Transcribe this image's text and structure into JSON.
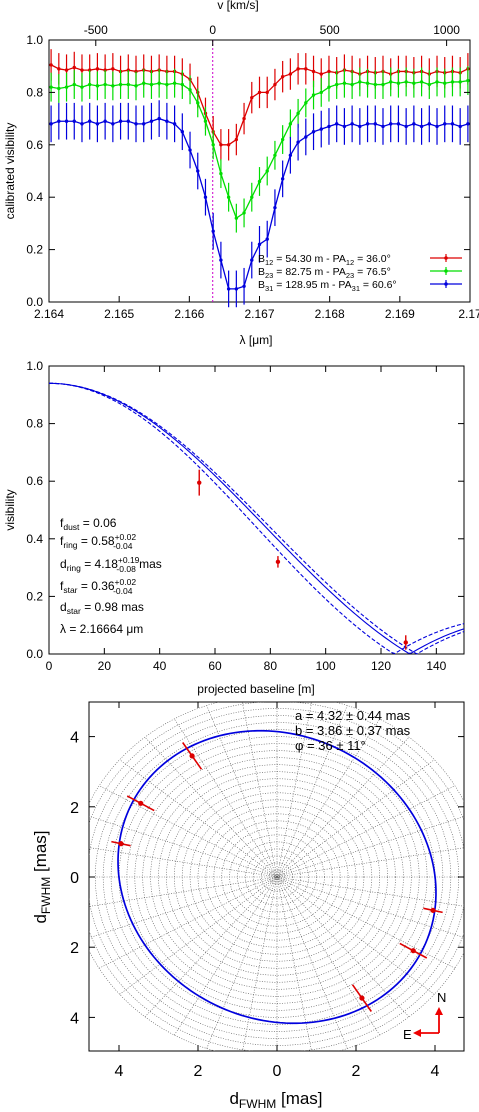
{
  "chart_data": [
    {
      "type": "line",
      "panel": "spectro-interferometry",
      "xlabel": "λ [μm]",
      "x2label": "v [km/s]",
      "ylabel": "calibrated visibility",
      "xlim": [
        2.164,
        2.17
      ],
      "ylim": [
        0.0,
        1.0
      ],
      "x2lim": [
        -700,
        1100
      ],
      "xticks": [
        "2.164",
        "2.165",
        "2.166",
        "2.167",
        "2.168",
        "2.169",
        "2.17"
      ],
      "yticks": [
        "0.0",
        "0.2",
        "0.4",
        "0.6",
        "0.8",
        "1.0"
      ],
      "x2ticks": [
        "-500",
        "0",
        "500",
        "1000"
      ],
      "x2tick_values": [
        -500,
        0,
        500,
        1000
      ],
      "vline_velocity": 0,
      "x": [
        2.16403,
        2.16414,
        2.16425,
        2.16436,
        2.16447,
        2.16458,
        2.16469,
        2.1648,
        2.16491,
        2.16502,
        2.16513,
        2.16524,
        2.16535,
        2.16546,
        2.16557,
        2.16568,
        2.16579,
        2.1659,
        2.16601,
        2.16612,
        2.16623,
        2.16634,
        2.16645,
        2.16656,
        2.16667,
        2.16678,
        2.16689,
        2.167,
        2.16711,
        2.16722,
        2.16733,
        2.16744,
        2.16755,
        2.16766,
        2.16777,
        2.16788,
        2.16799,
        2.1681,
        2.16821,
        2.16832,
        2.16843,
        2.16854,
        2.16865,
        2.16876,
        2.16887,
        2.16898,
        2.16909,
        2.1692,
        2.16931,
        2.16942,
        2.16953,
        2.16964,
        2.16975,
        2.16986,
        2.16997
      ],
      "series": [
        {
          "name": "B12 = 54.30 m - PA12 = 36.0°",
          "color": "#dd0000",
          "values": [
            0.905,
            0.89,
            0.885,
            0.895,
            0.885,
            0.885,
            0.89,
            0.885,
            0.89,
            0.88,
            0.885,
            0.88,
            0.885,
            0.88,
            0.885,
            0.88,
            0.88,
            0.87,
            0.85,
            0.8,
            0.72,
            0.65,
            0.6,
            0.6,
            0.62,
            0.7,
            0.78,
            0.8,
            0.8,
            0.83,
            0.86,
            0.87,
            0.89,
            0.89,
            0.88,
            0.87,
            0.88,
            0.875,
            0.885,
            0.88,
            0.87,
            0.88,
            0.875,
            0.88,
            0.87,
            0.88,
            0.88,
            0.875,
            0.88,
            0.87,
            0.88,
            0.875,
            0.88,
            0.875,
            0.89
          ],
          "err": 0.06
        },
        {
          "name": "B23 = 82.75 m - PA23 = 76.5°",
          "color": "#00dd00",
          "values": [
            0.82,
            0.815,
            0.82,
            0.83,
            0.82,
            0.83,
            0.825,
            0.83,
            0.825,
            0.83,
            0.83,
            0.825,
            0.835,
            0.83,
            0.835,
            0.83,
            0.835,
            0.83,
            0.81,
            0.76,
            0.69,
            0.6,
            0.49,
            0.4,
            0.32,
            0.34,
            0.4,
            0.46,
            0.5,
            0.56,
            0.62,
            0.68,
            0.72,
            0.76,
            0.79,
            0.8,
            0.82,
            0.83,
            0.835,
            0.83,
            0.84,
            0.835,
            0.83,
            0.83,
            0.84,
            0.835,
            0.84,
            0.835,
            0.84,
            0.83,
            0.84,
            0.835,
            0.84,
            0.84,
            0.845
          ],
          "err": 0.055
        },
        {
          "name": "B31 = 128.95 m - PA31 = 60.6°",
          "color": "#0000dd",
          "values": [
            0.68,
            0.69,
            0.69,
            0.69,
            0.68,
            0.69,
            0.68,
            0.69,
            0.68,
            0.69,
            0.69,
            0.68,
            0.68,
            0.69,
            0.7,
            0.69,
            0.68,
            0.65,
            0.58,
            0.5,
            0.4,
            0.27,
            0.16,
            0.05,
            0.05,
            0.06,
            0.16,
            0.22,
            0.24,
            0.36,
            0.47,
            0.56,
            0.61,
            0.63,
            0.65,
            0.66,
            0.67,
            0.68,
            0.67,
            0.68,
            0.67,
            0.68,
            0.68,
            0.67,
            0.68,
            0.68,
            0.67,
            0.68,
            0.67,
            0.68,
            0.67,
            0.68,
            0.68,
            0.67,
            0.68
          ],
          "err": 0.07
        }
      ],
      "legend": [
        {
          "B": "B",
          "bsub": "12",
          "bval": " =   54.30 m - PA",
          "psub": "12",
          "pval": " =  36.0°"
        },
        {
          "B": "B",
          "bsub": "23",
          "bval": " =   82.75 m - PA",
          "psub": "23",
          "pval": " =  76.5°"
        },
        {
          "B": "B",
          "bsub": "31",
          "bval": " = 128.95 m - PA",
          "psub": "31",
          "pval": " =  60.6°"
        }
      ],
      "legend_placement": "bottom-right"
    },
    {
      "type": "line",
      "panel": "visibility-model",
      "xlabel": "projected baseline [m]",
      "ylabel": "visibility",
      "xlim": [
        0,
        150
      ],
      "ylim": [
        0.0,
        1.0
      ],
      "xticks": [
        "0",
        "20",
        "40",
        "60",
        "80",
        "100",
        "120",
        "140"
      ],
      "yticks": [
        "0.0",
        "0.2",
        "0.4",
        "0.6",
        "0.8",
        "1.0"
      ],
      "model": {
        "V0": 0.94,
        "d_ring_mas": 4.18,
        "d_ring_low": 4.1,
        "d_ring_high": 4.37,
        "wavelength_um": 2.16664
      },
      "points": [
        {
          "baseline": 54.3,
          "visibility": 0.595,
          "err": 0.045
        },
        {
          "baseline": 82.75,
          "visibility": 0.32,
          "err": 0.02
        },
        {
          "baseline": 128.95,
          "visibility": 0.04,
          "err": 0.025
        }
      ],
      "color": "#0000dd",
      "point_color": "#dd0000",
      "annotations": [
        {
          "main": "f",
          "sub": "dust",
          "tail": " = 0.06",
          "sup": "",
          "sup_sub": ""
        },
        {
          "main": "f",
          "sub": "ring",
          "tail": " = 0.58",
          "sup": "+0.02",
          "sup_sub": "-0.04"
        },
        {
          "main": "d",
          "sub": "ring",
          "tail": " = 4.18",
          "sup": "+0.19",
          "sup_sub": "-0.08",
          "after": " mas"
        },
        {
          "main": "f",
          "sub": "star",
          "tail": " = 0.36",
          "sup": "+0.02",
          "sup_sub": "-0.04"
        },
        {
          "main": "d",
          "sub": "star",
          "tail": " = 0.98 mas",
          "sup": "",
          "sup_sub": ""
        },
        {
          "main": "λ = 2.16664 μm",
          "sub": "",
          "tail": "",
          "sup": "",
          "sup_sub": ""
        }
      ]
    },
    {
      "type": "scatter",
      "panel": "ring-ellipse",
      "xlabel": "d",
      "xlabel_sub": "FWHM",
      "xlabel_unit": " [mas]",
      "ylabel": "d",
      "ylabel_sub": "FWHM",
      "ylabel_unit": " [mas]",
      "xlim": [
        -5,
        5
      ],
      "ylim": [
        -5,
        5
      ],
      "xticks": [
        "4",
        "2",
        "0",
        "2",
        "4"
      ],
      "yticks": [
        "4",
        "2",
        "0",
        "2",
        "4"
      ],
      "tick_values": [
        -4,
        -2,
        0,
        2,
        4
      ],
      "ellipse": {
        "a": 4.32,
        "b": 3.86,
        "phi_deg": 36
      },
      "fit_text": [
        "a = 4.32 ± 0.44 mas",
        "b = 3.86 ± 0.37 mas",
        "φ = 36 ± 11°"
      ],
      "points": [
        {
          "x": -2.15,
          "y": 3.45,
          "err": 0.45,
          "pa_deg": 36.0
        },
        {
          "x": -3.45,
          "y": 2.1,
          "err": 0.4,
          "pa_deg": 60.6
        },
        {
          "x": -3.95,
          "y": 0.95,
          "err": 0.25,
          "pa_deg": 76.5
        },
        {
          "x": 3.95,
          "y": -0.95,
          "err": 0.25,
          "pa_deg": 76.5
        },
        {
          "x": 3.45,
          "y": -2.1,
          "err": 0.4,
          "pa_deg": 60.6
        },
        {
          "x": 2.15,
          "y": -3.45,
          "err": 0.45,
          "pa_deg": 36.0
        }
      ],
      "compass": {
        "north": "N",
        "east": "E"
      },
      "color": "#0000dd",
      "point_color": "#dd0000"
    }
  ]
}
